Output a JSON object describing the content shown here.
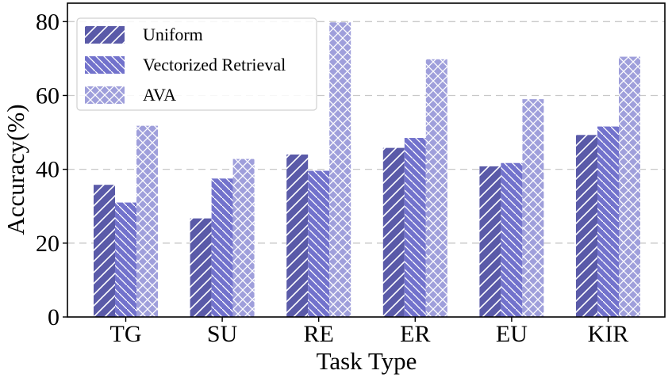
{
  "chart_data": {
    "type": "bar",
    "categories": [
      "TG",
      "SU",
      "RE",
      "ER",
      "EU",
      "KIR"
    ],
    "series": [
      {
        "name": "Uniform",
        "values": [
          35.8,
          26.7,
          44.0,
          45.8,
          40.8,
          49.3
        ],
        "color": "#5a5aa8",
        "pattern": "diagonal-single"
      },
      {
        "name": "Vectorized Retrieval",
        "values": [
          31.0,
          37.5,
          39.6,
          48.5,
          41.7,
          51.6
        ],
        "color": "#7272cc",
        "pattern": "diagonal-double"
      },
      {
        "name": "AVA",
        "values": [
          51.8,
          42.8,
          79.8,
          69.8,
          59.0,
          70.5
        ],
        "color": "#9f9fdb",
        "pattern": "crosshatch"
      }
    ],
    "xlabel": "Task Type",
    "ylabel": "Accuracy(%)",
    "ylim": [
      0,
      85
    ],
    "yticks": [
      0,
      20,
      40,
      60,
      80
    ],
    "grid": "horizontal-dashed",
    "legend": "top-left"
  }
}
